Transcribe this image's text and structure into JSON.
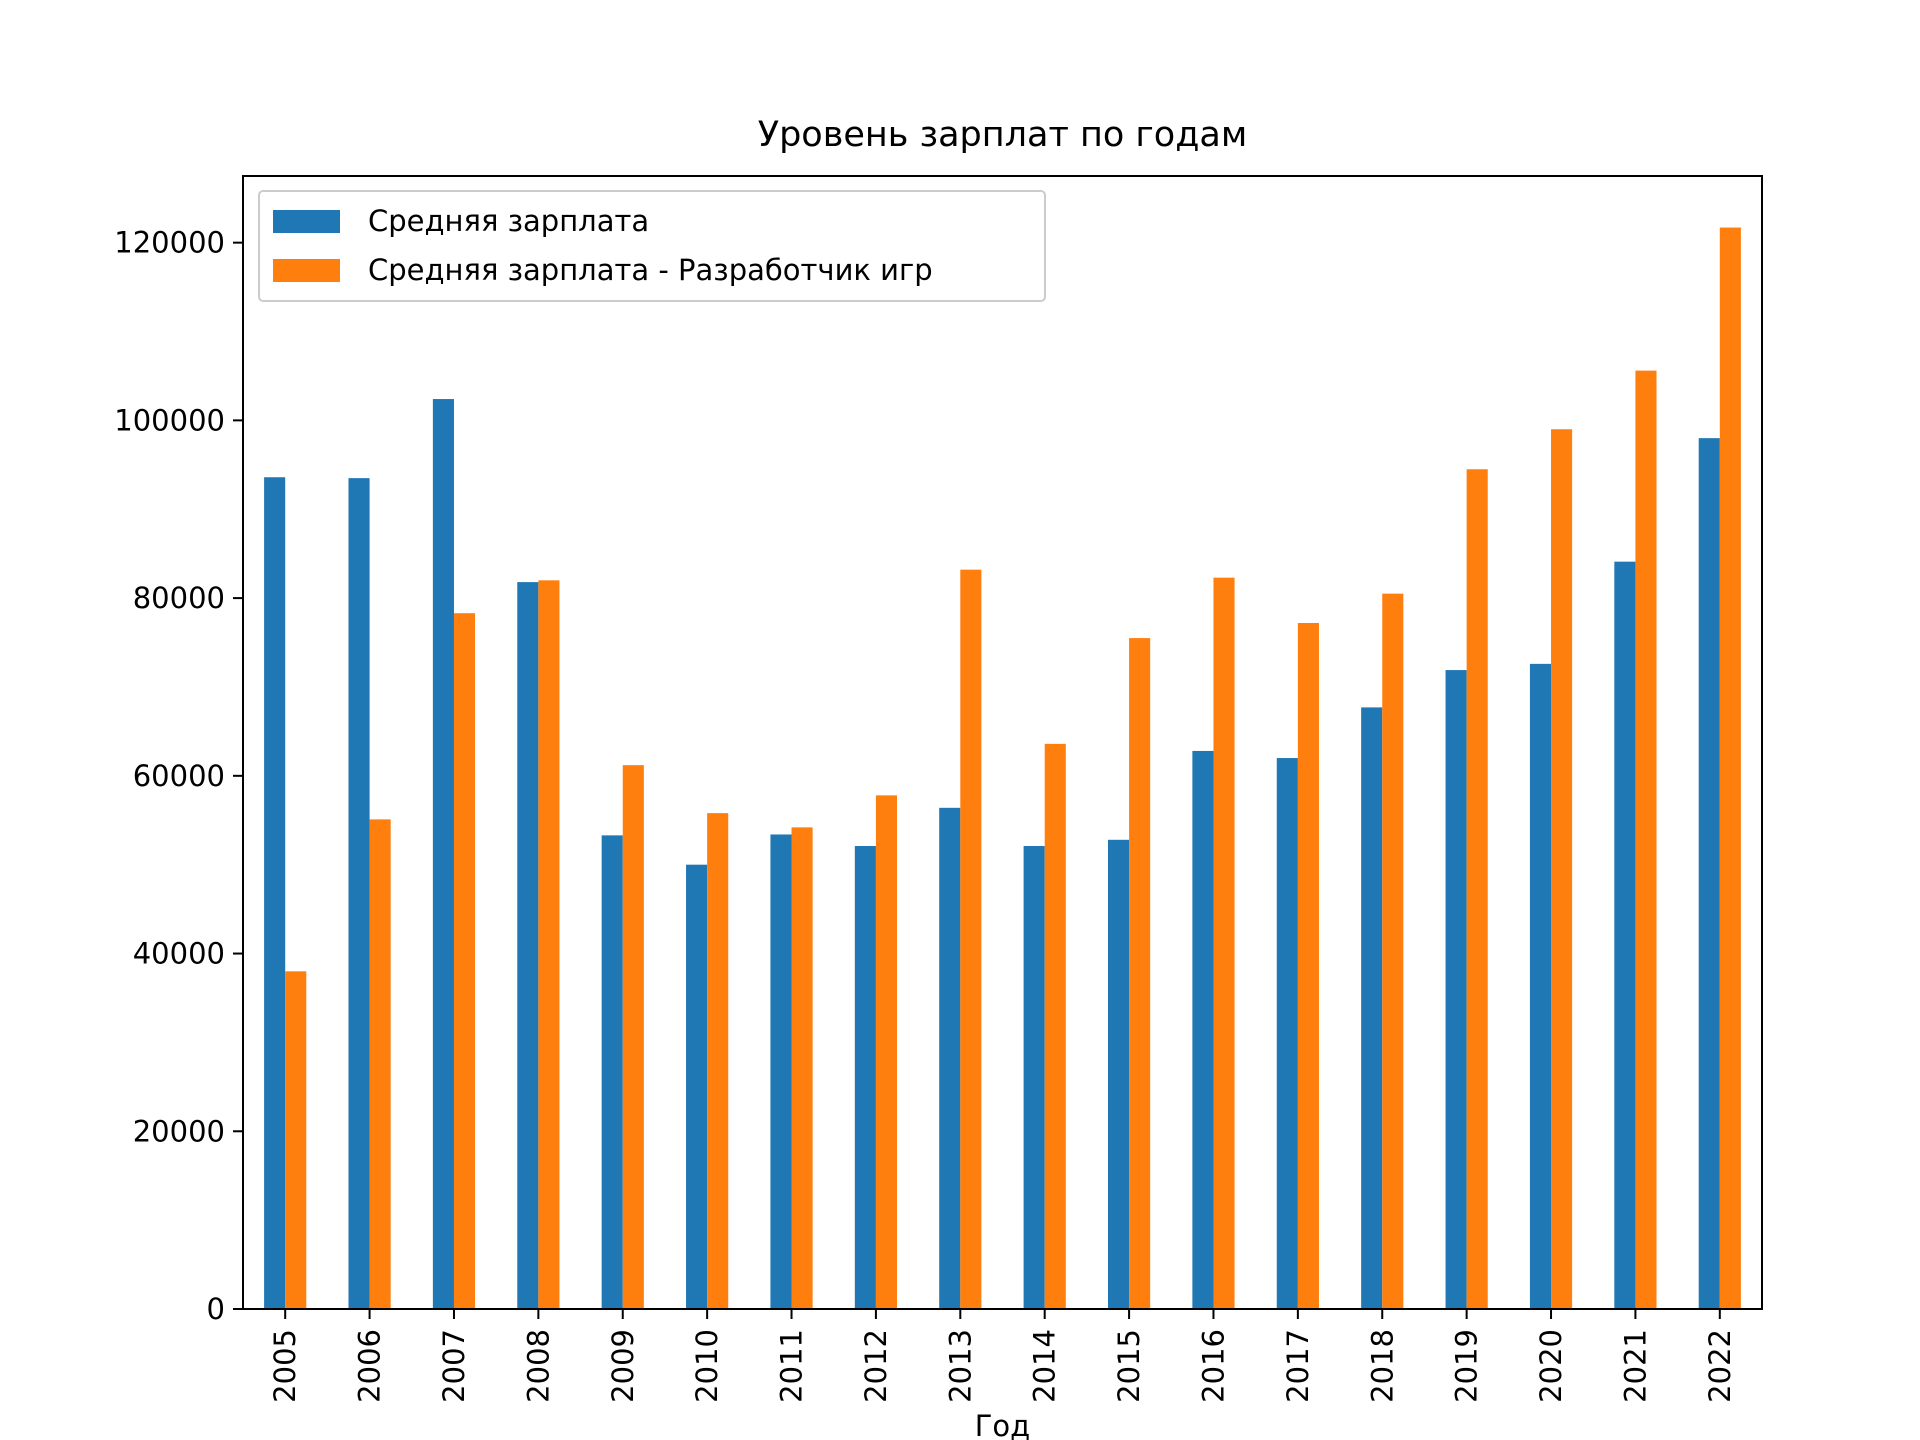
{
  "chart_data": {
    "type": "bar",
    "title": "Уровень зарплат по годам",
    "xlabel": "Год",
    "ylabel": "",
    "ylim": [
      0,
      127500
    ],
    "yticks": [
      0,
      20000,
      40000,
      60000,
      80000,
      100000,
      120000
    ],
    "categories": [
      "2005",
      "2006",
      "2007",
      "2008",
      "2009",
      "2010",
      "2011",
      "2012",
      "2013",
      "2014",
      "2015",
      "2016",
      "2017",
      "2018",
      "2019",
      "2020",
      "2021",
      "2022"
    ],
    "series": [
      {
        "name": "Средняя зарплата",
        "color": "#1f77b4",
        "values": [
          93600,
          93500,
          102400,
          81800,
          53300,
          50000,
          53400,
          52100,
          56400,
          52100,
          52800,
          62800,
          62000,
          67700,
          71900,
          72600,
          84100,
          98000
        ]
      },
      {
        "name": "Средняя зарплата - Разработчик игр",
        "color": "#ff7f0e",
        "values": [
          38000,
          55100,
          78300,
          82000,
          61200,
          55800,
          54200,
          57800,
          83200,
          63600,
          75500,
          82300,
          77200,
          80500,
          94500,
          99000,
          105600,
          121700
        ]
      }
    ],
    "grid": false,
    "legend_position": "top-left",
    "tick_rotation": 90
  }
}
